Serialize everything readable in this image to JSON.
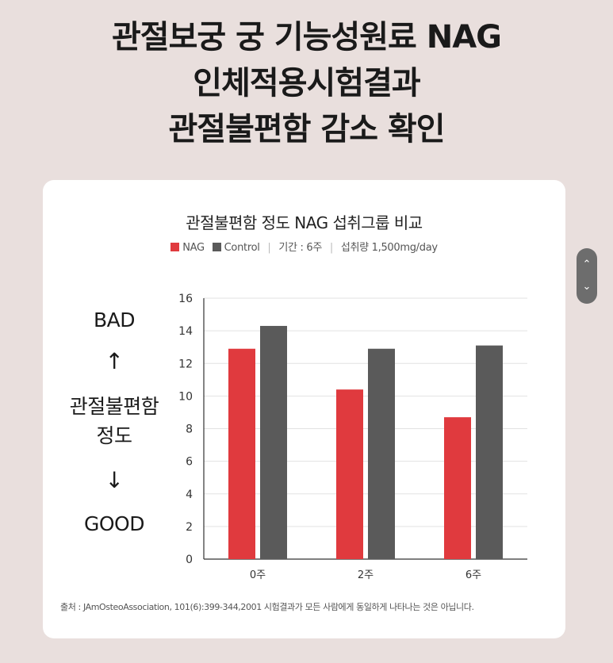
{
  "headline": [
    "관절보궁 궁 기능성원료 NAG",
    "인체적용시험결과",
    "관절불편함 감소 확인"
  ],
  "side_labels": {
    "bad": "BAD",
    "up_arrow": "↑",
    "metric_line1": "관절불편함",
    "metric_line2": "정도",
    "down_arrow": "↓",
    "good": "GOOD"
  },
  "legend": {
    "nag": "NAG",
    "control": "Control",
    "period": "기간 : 6주",
    "dose": "섭취량 1,500mg/day"
  },
  "colors": {
    "nag": "#e03a3e",
    "control": "#5a5a5a",
    "grid": "#e2e2e2",
    "axis": "#333333"
  },
  "footnote": "출처 : JAmOsteoAssociation, 101(6):399-344,2001 시험결과가 모든 사람에게 동일하게 나타나는 것은 아닙니다.",
  "scroll_icons": {
    "up": "chevron-up-icon",
    "down": "chevron-down-icon"
  },
  "chart_data": {
    "type": "bar",
    "title": "관절불편함 정도 NAG 섭취그룹 비교",
    "categories": [
      "0주",
      "2주",
      "6주"
    ],
    "series": [
      {
        "name": "NAG",
        "values": [
          12.9,
          10.4,
          8.7
        ]
      },
      {
        "name": "Control",
        "values": [
          14.3,
          12.9,
          13.1
        ]
      }
    ],
    "ylim": [
      0,
      16
    ],
    "yticks": [
      0,
      2,
      4,
      6,
      8,
      10,
      12,
      14,
      16
    ],
    "grid": true,
    "legend_position": "top"
  }
}
